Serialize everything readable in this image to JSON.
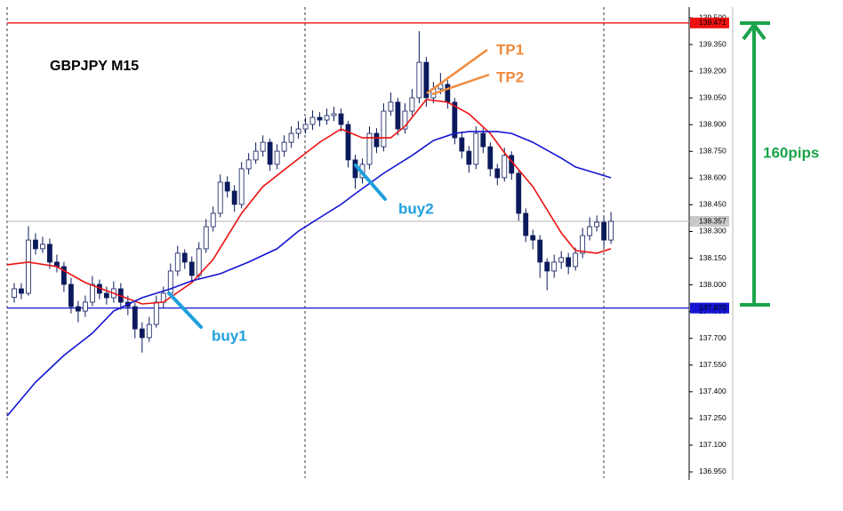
{
  "chart_data": {
    "type": "candlestick",
    "title": "GBPJPY M15",
    "xlim": [
      -1,
      95
    ],
    "ylim": [
      136.915,
      139.56
    ],
    "yticks": [
      {
        "value": 136.95,
        "label": "136.950"
      },
      {
        "value": 137.1,
        "label": "137.100"
      },
      {
        "value": 137.25,
        "label": "137.250"
      },
      {
        "value": 137.4,
        "label": "137.400"
      },
      {
        "value": 137.55,
        "label": "137.550"
      },
      {
        "value": 137.7,
        "label": "137.700"
      },
      {
        "value": 137.85,
        "label": "137.850"
      },
      {
        "value": 138.0,
        "label": "138.000"
      },
      {
        "value": 138.15,
        "label": "138.150"
      },
      {
        "value": 138.3,
        "label": "138.300"
      },
      {
        "value": 138.45,
        "label": "138.450"
      },
      {
        "value": 138.6,
        "label": "138.600"
      },
      {
        "value": 138.75,
        "label": "138.750"
      },
      {
        "value": 138.9,
        "label": "138.900"
      },
      {
        "value": 139.05,
        "label": "139.050"
      },
      {
        "value": 139.2,
        "label": "139.200"
      },
      {
        "value": 139.35,
        "label": "139.350"
      },
      {
        "value": 139.5,
        "label": "139.500"
      }
    ],
    "open": [
      137.93,
      137.978,
      137.953,
      138.252,
      138.203,
      138.228,
      138.128,
      138.103,
      138.003,
      137.878,
      137.853,
      137.903,
      138.003,
      137.953,
      137.928,
      137.978,
      137.903,
      137.878,
      137.753,
      137.704,
      137.778,
      137.903,
      137.953,
      138.078,
      138.178,
      138.128,
      138.053,
      138.203,
      138.327,
      138.402,
      138.577,
      138.527,
      138.452,
      138.652,
      138.702,
      138.751,
      138.801,
      138.677,
      138.751,
      138.801,
      138.851,
      138.876,
      138.901,
      138.941,
      138.926,
      138.951,
      138.961,
      138.901,
      138.702,
      138.602,
      138.677,
      138.851,
      138.776,
      138.976,
      139.026,
      138.876,
      138.976,
      139.051,
      139.25,
      139.051,
      139.101,
      139.126,
      139.026,
      138.826,
      138.751,
      138.677,
      138.851,
      138.776,
      138.652,
      138.602,
      138.727,
      138.627,
      138.402,
      138.277,
      138.252,
      138.128,
      138.078,
      138.128,
      138.153,
      138.103,
      138.178,
      138.277,
      138.327,
      138.352,
      138.252
    ],
    "high": [
      138.01,
      138.01,
      138.33,
      138.29,
      138.27,
      138.26,
      138.17,
      138.13,
      138.04,
      137.91,
      137.94,
      138.05,
      138.03,
      137.99,
      138.02,
      138.01,
      137.94,
      137.9,
      137.79,
      137.82,
      137.94,
      137.99,
      138.12,
      138.22,
      138.2,
      138.16,
      138.24,
      138.37,
      138.44,
      138.62,
      138.61,
      138.56,
      138.69,
      138.74,
      138.8,
      138.84,
      138.82,
      138.79,
      138.84,
      138.89,
      138.92,
      138.94,
      138.98,
      138.97,
      138.99,
      139.0,
      138.99,
      138.92,
      138.73,
      138.71,
      138.89,
      138.88,
      139.02,
      139.08,
      139.05,
      139.02,
      139.1,
      139.425,
      139.28,
      139.14,
      139.19,
      139.15,
      139.05,
      138.86,
      138.78,
      138.89,
      138.88,
      138.8,
      138.68,
      138.77,
      138.75,
      138.65,
      138.43,
      138.31,
      138.28,
      138.15,
      138.17,
      138.19,
      138.18,
      138.21,
      138.32,
      138.38,
      138.39,
      138.38,
      138.41
    ],
    "low": [
      137.9,
      137.92,
      137.94,
      138.17,
      138.18,
      138.09,
      138.07,
      137.96,
      137.84,
      137.79,
      137.82,
      137.88,
      137.92,
      137.89,
      137.9,
      137.86,
      137.83,
      137.7,
      137.62,
      137.68,
      137.76,
      137.87,
      137.93,
      138.05,
      138.09,
      138.01,
      138.03,
      138.18,
      138.3,
      138.38,
      138.49,
      138.41,
      138.43,
      138.62,
      138.68,
      138.72,
      138.64,
      138.65,
      138.72,
      138.77,
      138.82,
      138.85,
      138.87,
      138.89,
      138.9,
      138.92,
      138.86,
      138.66,
      138.54,
      138.57,
      138.65,
      138.74,
      138.75,
      138.95,
      138.84,
      138.85,
      138.95,
      139.02,
      139.0,
      139.02,
      139.07,
      138.99,
      138.79,
      138.71,
      138.63,
      138.65,
      138.74,
      138.61,
      138.56,
      138.58,
      138.59,
      138.36,
      138.24,
      138.2,
      138.04,
      137.97,
      138.04,
      138.09,
      138.06,
      138.08,
      138.15,
      138.25,
      138.3,
      138.21,
      138.23
    ],
    "close": [
      137.978,
      137.953,
      138.252,
      138.203,
      138.228,
      138.128,
      138.103,
      138.003,
      137.878,
      137.853,
      137.903,
      138.003,
      137.953,
      137.928,
      137.978,
      137.903,
      137.878,
      137.753,
      137.704,
      137.778,
      137.903,
      137.953,
      138.078,
      138.178,
      138.128,
      138.053,
      138.203,
      138.327,
      138.402,
      138.577,
      138.527,
      138.452,
      138.652,
      138.702,
      138.751,
      138.801,
      138.677,
      138.751,
      138.801,
      138.851,
      138.876,
      138.901,
      138.941,
      138.926,
      138.951,
      138.961,
      138.901,
      138.702,
      138.602,
      138.677,
      138.851,
      138.776,
      138.976,
      139.026,
      138.876,
      138.976,
      139.051,
      139.25,
      139.051,
      139.101,
      139.126,
      139.026,
      138.826,
      138.751,
      138.677,
      138.851,
      138.776,
      138.652,
      138.602,
      138.727,
      138.627,
      138.402,
      138.277,
      138.252,
      138.128,
      138.078,
      138.128,
      138.153,
      138.103,
      138.178,
      138.277,
      138.327,
      138.352,
      138.252,
      138.357
    ],
    "bull_color": "#ffffff",
    "bear_color": "#0b1a5c",
    "moving_averages": [
      {
        "color": "#ee1111",
        "x": [
          -1,
          2,
          6,
          10,
          14,
          18,
          21,
          25,
          28,
          32,
          35,
          39,
          43,
          46,
          49,
          53,
          55,
          58,
          61,
          64,
          67,
          69,
          73,
          77,
          79,
          82,
          84
        ],
        "values": [
          138.113,
          138.128,
          138.103,
          138.013,
          137.953,
          137.893,
          137.903,
          138.013,
          138.143,
          138.402,
          138.552,
          138.677,
          138.801,
          138.876,
          138.826,
          138.826,
          138.891,
          139.041,
          139.026,
          138.961,
          138.851,
          138.742,
          138.552,
          138.292,
          138.193,
          138.178,
          138.203
        ]
      },
      {
        "color": "#1414d2",
        "x": [
          -1,
          3,
          7,
          11,
          14,
          18,
          22,
          25,
          29,
          33,
          37,
          40,
          43,
          46,
          48,
          52,
          56,
          59,
          62,
          64,
          68,
          70,
          73,
          77,
          79,
          84
        ],
        "values": [
          137.264,
          137.454,
          137.604,
          137.729,
          137.853,
          137.928,
          137.978,
          138.023,
          138.063,
          138.128,
          138.203,
          138.302,
          138.377,
          138.452,
          138.512,
          138.627,
          138.727,
          138.811,
          138.851,
          138.861,
          138.861,
          138.851,
          138.801,
          138.712,
          138.662,
          138.602
        ]
      }
    ],
    "hlines": [
      {
        "value": 139.471,
        "color": "#ee1111",
        "text_color": "#ffffff"
      },
      {
        "value": 137.87,
        "label": "137.870",
        "color": "#1414d2",
        "text_color": "#ffffff"
      },
      {
        "value": 138.357,
        "color": "#c8c8c8",
        "text_color": "#000000"
      }
    ],
    "annotations": [
      "buy1",
      "buy2",
      "TP1",
      "TP2",
      "160pips"
    ]
  }
}
